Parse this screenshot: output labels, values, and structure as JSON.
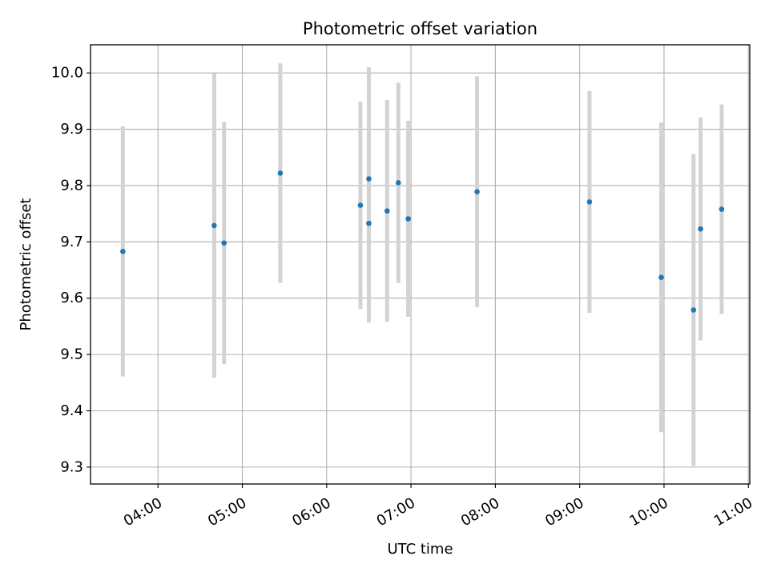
{
  "chart_data": {
    "type": "scatter",
    "title": "Photometric offset variation",
    "xlabel": "UTC time",
    "ylabel": "Photometric offset",
    "x_ticks": [
      "04:00",
      "05:00",
      "06:00",
      "07:00",
      "08:00",
      "09:00",
      "10:00",
      "11:00"
    ],
    "y_ticks": [
      "9.3",
      "9.4",
      "9.5",
      "9.6",
      "9.7",
      "9.8",
      "9.9",
      "10.0"
    ],
    "xlim": [
      "03:12",
      "11:01"
    ],
    "ylim": [
      9.27,
      10.05
    ],
    "grid": true,
    "colors": {
      "point": "#1f77b4",
      "errorbar": "#d3d3d3",
      "grid": "#b0b0b0"
    },
    "series": [
      {
        "points": [
          {
            "x": "03:35",
            "y": 9.683,
            "err": 0.222
          },
          {
            "x": "04:40",
            "y": 9.729,
            "err": 0.27
          },
          {
            "x": "04:47",
            "y": 9.698,
            "err": 0.215
          },
          {
            "x": "05:27",
            "y": 9.822,
            "err": 0.195
          },
          {
            "x": "06:24",
            "y": 9.765,
            "err": 0.184
          },
          {
            "x": "06:30",
            "y": 9.812,
            "err": 0.198
          },
          {
            "x": "06:30",
            "y": 9.733,
            "err": 0.176
          },
          {
            "x": "06:43",
            "y": 9.755,
            "err": 0.197
          },
          {
            "x": "06:51",
            "y": 9.805,
            "err": 0.178
          },
          {
            "x": "06:58",
            "y": 9.741,
            "err": 0.174
          },
          {
            "x": "07:47",
            "y": 9.789,
            "err": 0.205
          },
          {
            "x": "09:07",
            "y": 9.771,
            "err": 0.197
          },
          {
            "x": "09:58",
            "y": 9.637,
            "err": 0.275
          },
          {
            "x": "10:21",
            "y": 9.579,
            "err": 0.277
          },
          {
            "x": "10:26",
            "y": 9.723,
            "err": 0.198
          },
          {
            "x": "10:41",
            "y": 9.758,
            "err": 0.186
          }
        ]
      }
    ]
  }
}
